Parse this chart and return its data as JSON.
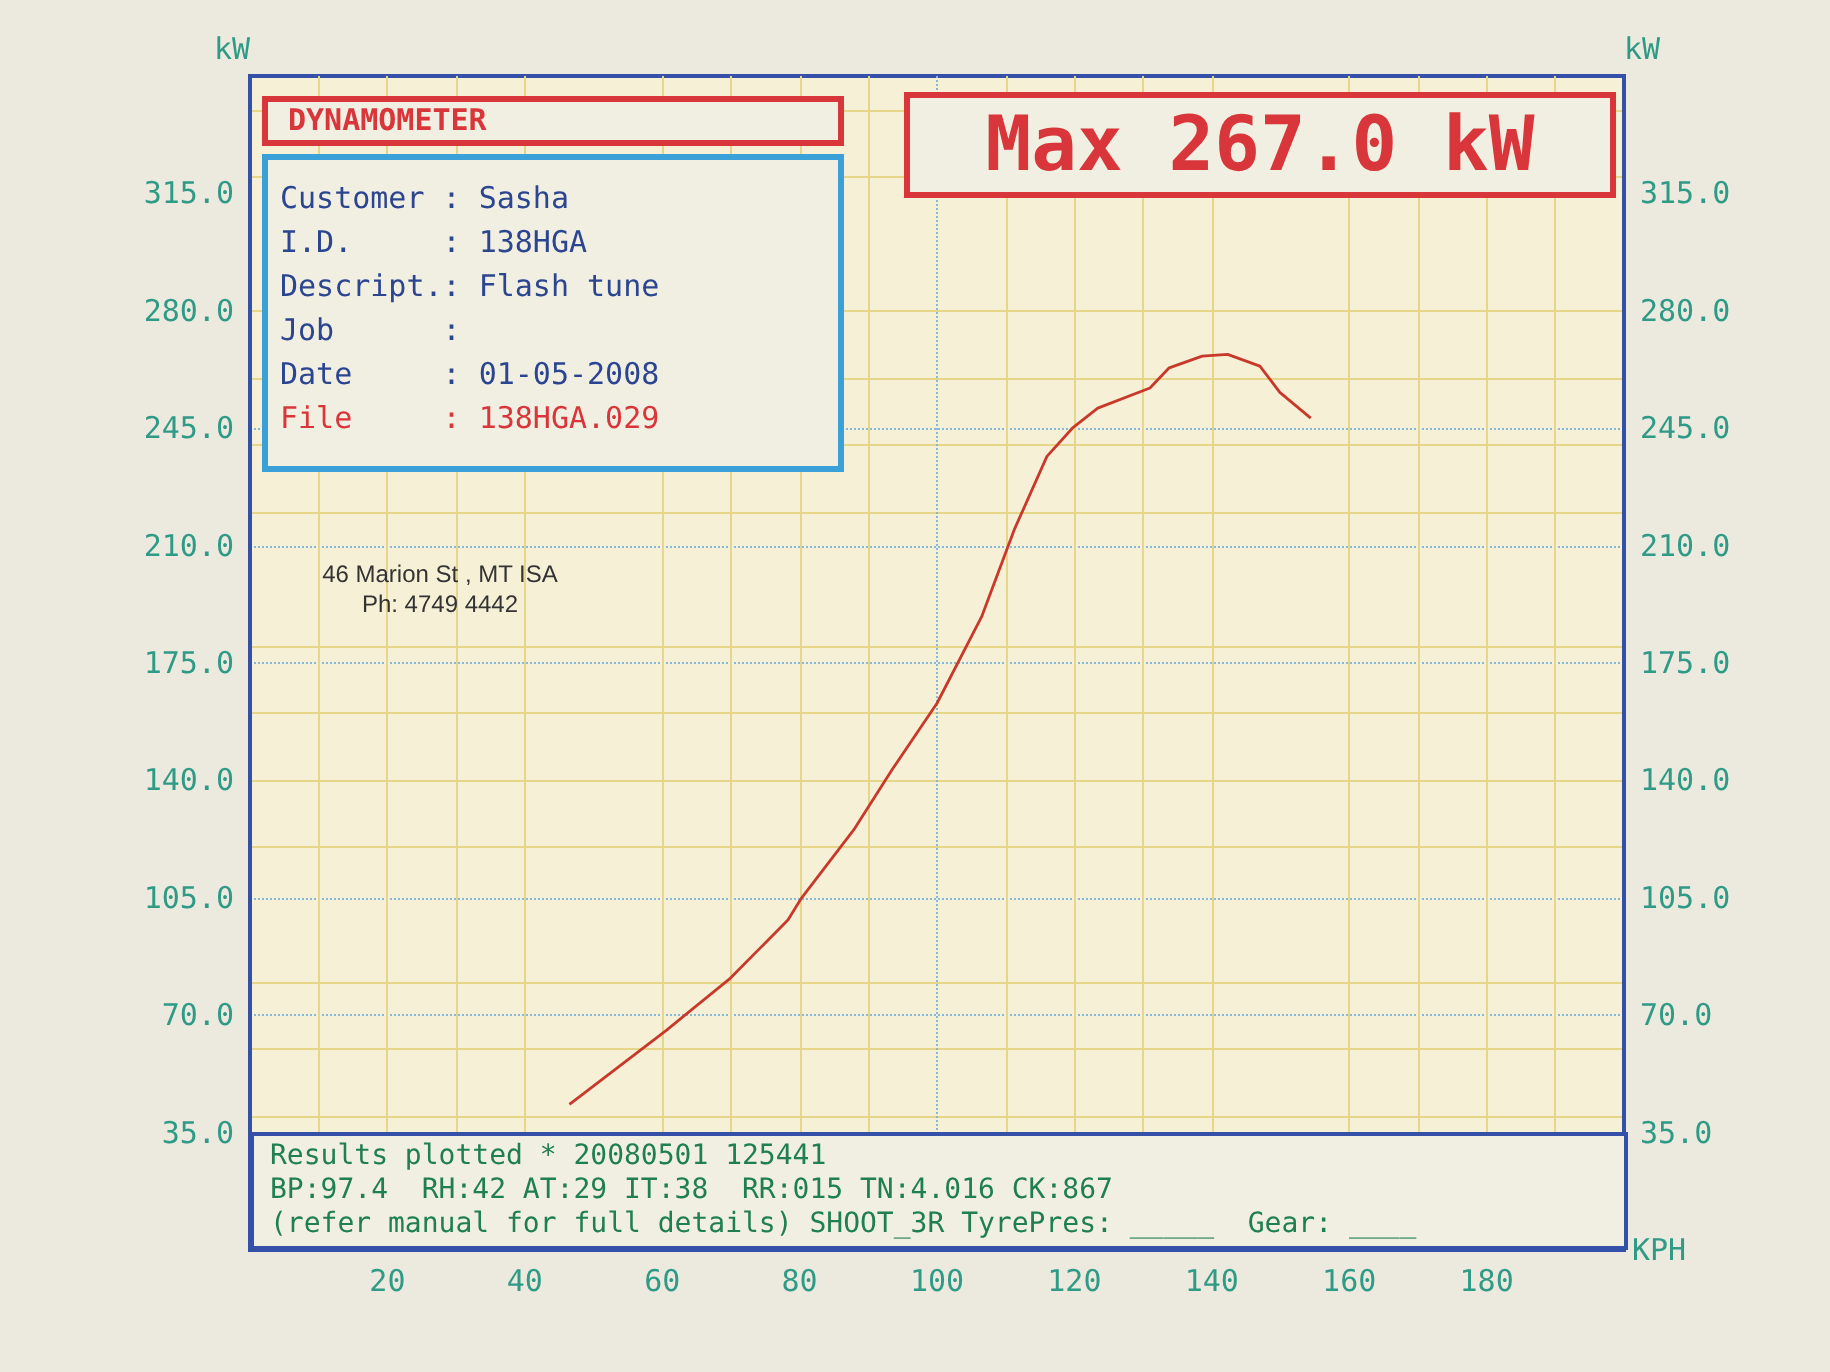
{
  "chart_data": {
    "type": "line",
    "annotations": [
      "DYNAMOMETER",
      "Max 267.0 kW",
      "Customer : Sasha",
      "I.D.     : 138HGA",
      "Descript.: Flash tune",
      "Job      :",
      "Date     : 01-05-2008",
      "File     : 138HGA.029",
      "46 Marion St , MT ISA",
      "Ph: 4749 4442",
      "Results plotted * 20080501 125441",
      "BP:97.4  RH:42 AT:29 IT:38  RR:015 TN:4.016 CK:867",
      "(refer manual for full details) SHOOT_3R TyrePres: _____  Gear: ____"
    ],
    "xlabel": "KPH",
    "ylabel": "kW",
    "y2label": "kW",
    "x": [
      46.5,
      60.6,
      69.9,
      78.3,
      80.3,
      87.9,
      93.5,
      100,
      106.5,
      111.3,
      116,
      119.7,
      123.4,
      131,
      133.8,
      138.6,
      142.3,
      147,
      149.9,
      154.4
    ],
    "series": [
      {
        "color": "#c8392b",
        "values": [
          43.4,
          65.5,
          81,
          98.4,
          105,
          125.3,
          143.3,
          163,
          188.8,
          215,
          236.6,
          245,
          251,
          257,
          263,
          266.5,
          267,
          263.5,
          255.7,
          248
        ]
      }
    ],
    "xlim": [
      0,
      200
    ],
    "xticks": [
      20,
      40,
      60,
      80,
      100,
      120,
      140,
      160,
      180
    ],
    "ylim": [
      0,
      350
    ],
    "yticks": [
      {
        "value": 35,
        "label": "35.0"
      },
      {
        "value": 70,
        "label": "70.0"
      },
      {
        "value": 105,
        "label": "105.0"
      },
      {
        "value": 140,
        "label": "140.0"
      },
      {
        "value": 175,
        "label": "175.0"
      },
      {
        "value": 210,
        "label": "210.0"
      },
      {
        "value": 245,
        "label": "245.0"
      },
      {
        "value": 280,
        "label": "280.0"
      },
      {
        "value": 315,
        "label": "315.0"
      }
    ],
    "y2lim": [
      0,
      350
    ],
    "y2ticks": [
      {
        "value": 35,
        "label": "35.0"
      },
      {
        "value": 70,
        "label": "70.0"
      },
      {
        "value": 105,
        "label": "105.0"
      },
      {
        "value": 140,
        "label": "140.0"
      },
      {
        "value": 175,
        "label": "175.0"
      },
      {
        "value": 210,
        "label": "210.0"
      },
      {
        "value": 245,
        "label": "245.0"
      },
      {
        "value": 280,
        "label": "280.0"
      },
      {
        "value": 315,
        "label": "315.0"
      }
    ],
    "grid": true,
    "marker": "none",
    "line_style": "solid"
  }
}
